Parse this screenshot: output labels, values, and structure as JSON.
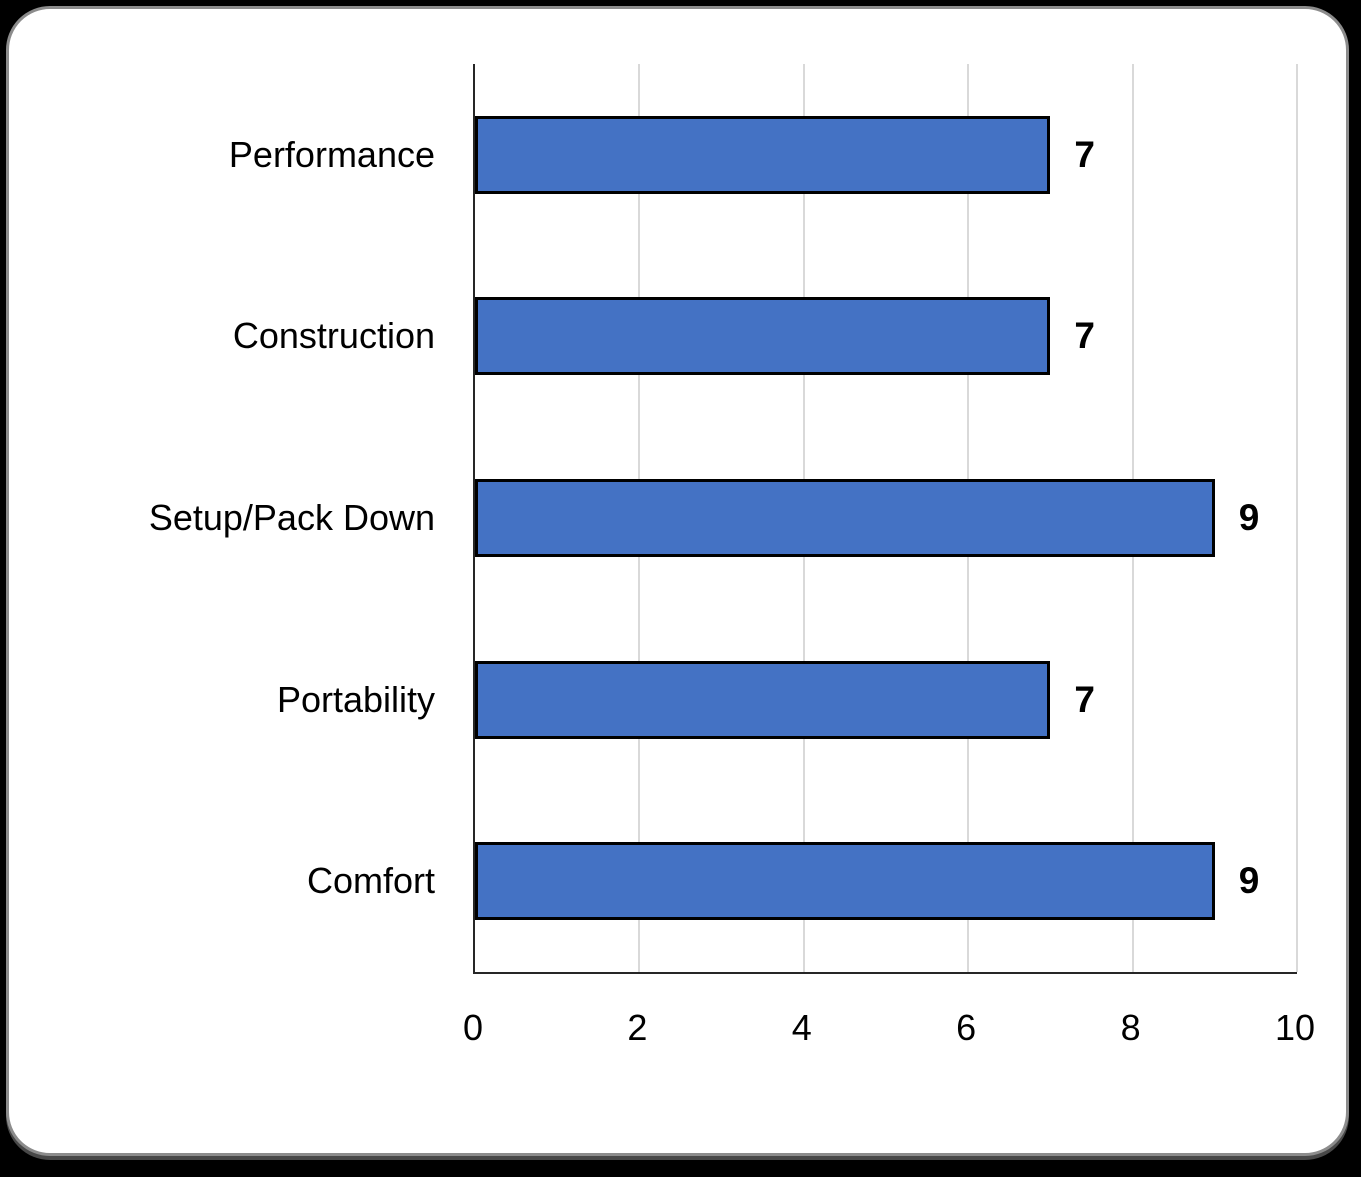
{
  "page": {
    "background_color": "#000000",
    "card_background_color": "#ffffff",
    "card_border_color": "#8c8c8c"
  },
  "chart_data": {
    "type": "bar",
    "orientation": "horizontal",
    "title": "",
    "xlabel": "",
    "ylabel": "",
    "categories": [
      "Performance",
      "Construction",
      "Setup/Pack Down",
      "Portability",
      "Comfort"
    ],
    "values": [
      7,
      7,
      9,
      7,
      9
    ],
    "data_labels": [
      "7",
      "7",
      "9",
      "7",
      "9"
    ],
    "xlim": [
      0,
      10
    ],
    "x_ticks": [
      "0",
      "2",
      "4",
      "6",
      "8",
      "10"
    ],
    "grid": "vertical-on",
    "legend": "none",
    "bar_color": "#4472c4",
    "bar_border_color": "#000000",
    "gridline_color": "#d9d9d9",
    "axis_line_color": "#262626",
    "label_text_color": "#000000"
  }
}
